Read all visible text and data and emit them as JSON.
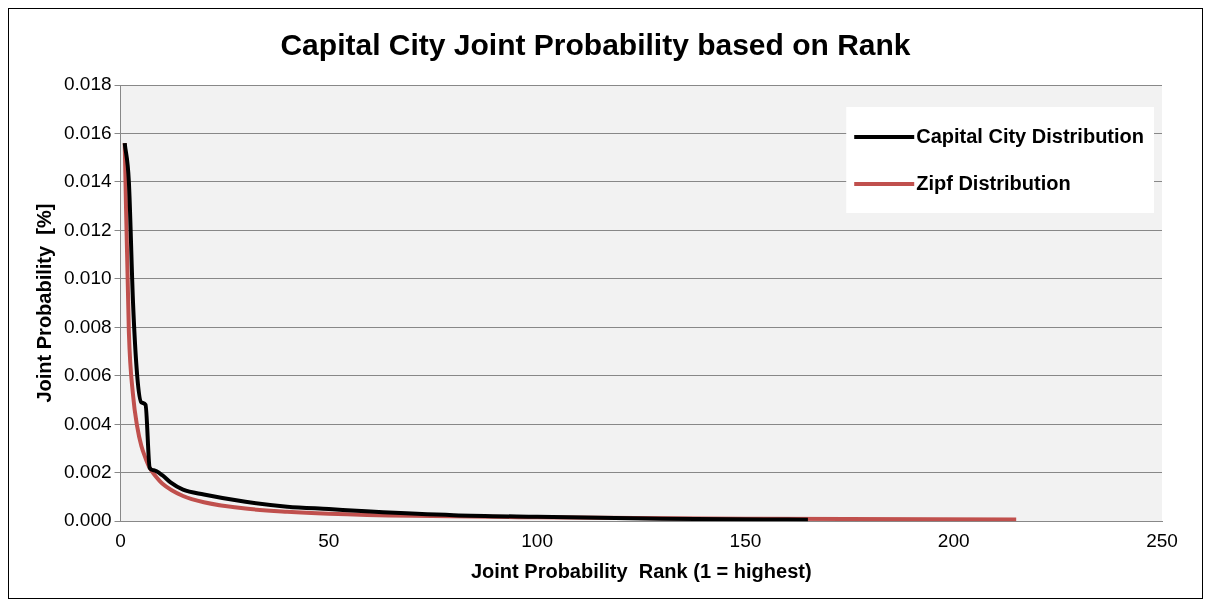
{
  "chart_data": {
    "type": "line",
    "title": "Capital City Joint Probability based on Rank",
    "xlabel": "Joint Probability  Rank (1 = highest)",
    "ylabel": "Joint Probability  [%]",
    "xlim": [
      0,
      250
    ],
    "xticks": [
      0,
      50,
      100,
      150,
      200,
      250
    ],
    "ylim": [
      0,
      0.018
    ],
    "yticks": [
      {
        "value": 0,
        "label": "0.000"
      },
      {
        "value": 0.002,
        "label": "0.002"
      },
      {
        "value": 0.004,
        "label": "0.004"
      },
      {
        "value": 0.006,
        "label": "0.006"
      },
      {
        "value": 0.008,
        "label": "0.008"
      },
      {
        "value": 0.01,
        "label": "0.010"
      },
      {
        "value": 0.012,
        "label": "0.012"
      },
      {
        "value": 0.014,
        "label": "0.014"
      },
      {
        "value": 0.016,
        "label": "0.016"
      },
      {
        "value": 0.018,
        "label": "0.018"
      }
    ],
    "grid": "y",
    "legend": "top right",
    "marker": "none",
    "line_style": "solid",
    "series": [
      {
        "name": "Capital City Distribution",
        "color": "#000000",
        "x": [
          1,
          2,
          3,
          4,
          5,
          6,
          7,
          8,
          10,
          12,
          15,
          20,
          30,
          40,
          50,
          60,
          80,
          100,
          130,
          165
        ],
        "values": [
          0.0156,
          0.014,
          0.009,
          0.006,
          0.0049,
          0.0048,
          0.0022,
          0.0021,
          0.0019,
          0.0016,
          0.0013,
          0.0011,
          0.0008,
          0.0006,
          0.0005,
          0.0004,
          0.00025,
          0.00018,
          0.0001,
          6e-05
        ]
      },
      {
        "name": "Zipf Distribution",
        "color": "#c0504d",
        "x": [
          1,
          2,
          3,
          4,
          5,
          6,
          7,
          8,
          10,
          15,
          20,
          30,
          40,
          50,
          70,
          100,
          150,
          215
        ],
        "values": [
          0.0156,
          0.0078,
          0.0052,
          0.0039,
          0.0031,
          0.0026,
          0.0022,
          0.00195,
          0.00156,
          0.00104,
          0.00078,
          0.00052,
          0.00039,
          0.00031,
          0.00022,
          0.00016,
          0.0001,
          7e-05
        ]
      }
    ]
  }
}
